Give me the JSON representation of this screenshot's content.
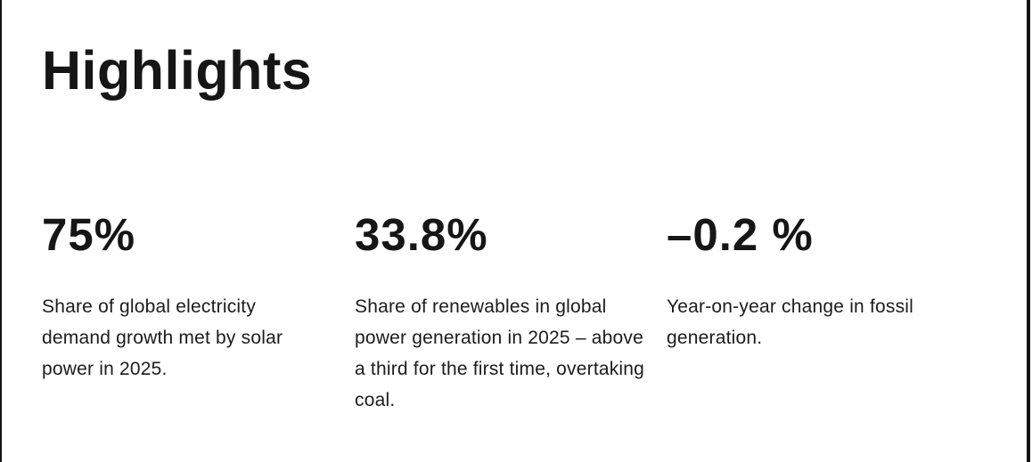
{
  "page": {
    "title": "Highlights",
    "background": "#ffffff",
    "text_color": "#161616",
    "edge_line_color": "#141414"
  },
  "stats": [
    {
      "value": "75%",
      "description": "Share of global electricity demand growth met by solar power in 2025."
    },
    {
      "value": "33.8%",
      "description": "Share of renewables in global power generation in 2025 – above a third for the first time, overtaking coal."
    },
    {
      "value": "–0.2 %",
      "description": "Year-on-year change in fossil generation."
    }
  ]
}
